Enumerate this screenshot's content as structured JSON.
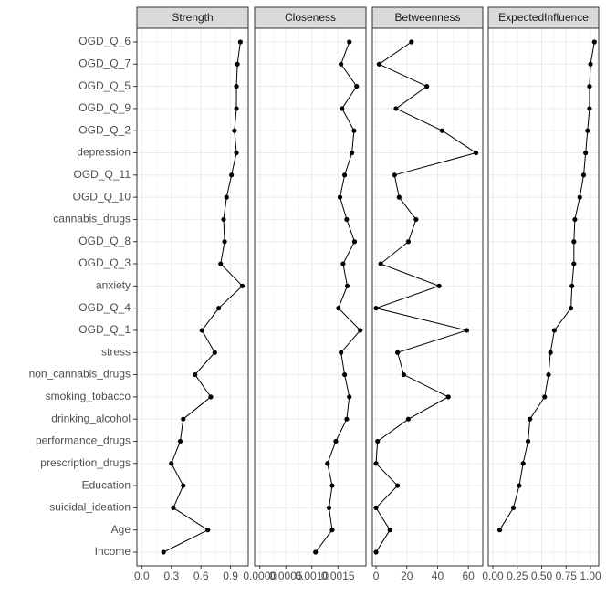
{
  "chart_data": {
    "type": "line",
    "orientation": "horizontal",
    "grid": true,
    "point_color": "#000000",
    "line_color": "#000000",
    "categories": [
      "OGD_Q_6",
      "OGD_Q_7",
      "OGD_Q_5",
      "OGD_Q_9",
      "OGD_Q_2",
      "depression",
      "OGD_Q_11",
      "OGD_Q_10",
      "cannabis_drugs",
      "OGD_Q_8",
      "OGD_Q_3",
      "anxiety",
      "OGD_Q_4",
      "OGD_Q_1",
      "stress",
      "non_cannabis_drugs",
      "smoking_tobacco",
      "drinking_alcohol",
      "performance_drugs",
      "prescription_drugs",
      "Education",
      "suicidal_ideation",
      "Age",
      "Income"
    ],
    "facets": [
      {
        "title": "Strength",
        "xlim": [
          -0.05,
          1.08
        ],
        "xticks": [
          {
            "value": 0,
            "label": "0.0"
          },
          0.3,
          0.6,
          0.9
        ],
        "values": [
          1.0,
          0.97,
          0.96,
          0.96,
          0.94,
          0.96,
          0.91,
          0.86,
          0.83,
          0.84,
          0.8,
          1.02,
          0.78,
          0.61,
          0.74,
          0.54,
          0.7,
          0.42,
          0.39,
          0.3,
          0.42,
          0.32,
          0.67,
          0.22
        ]
      },
      {
        "title": "Closeness",
        "xlim": [
          -0.0001,
          0.00204
        ],
        "xticks": [
          {
            "value": 0,
            "label": "0.0000"
          },
          {
            "value": 0.0005,
            "label": "0.0005"
          },
          {
            "value": 0.001,
            "label": "0.0010"
          },
          {
            "value": 0.0015,
            "label": "0.0015"
          }
        ],
        "values": [
          0.00172,
          0.00156,
          0.00186,
          0.00158,
          0.00181,
          0.00177,
          0.00163,
          0.00154,
          0.00167,
          0.00182,
          0.0016,
          0.00168,
          0.00151,
          0.00193,
          0.00156,
          0.00163,
          0.00172,
          0.00167,
          0.00146,
          0.0013,
          0.00139,
          0.00133,
          0.00139,
          0.00107
        ]
      },
      {
        "title": "Betweenness",
        "xlim": [
          -2.4,
          69.4
        ],
        "xticks": [
          0,
          20,
          40,
          60
        ],
        "values": [
          23,
          2,
          33,
          13,
          43,
          65,
          12,
          15,
          26,
          21,
          3,
          41,
          0,
          59,
          14,
          18,
          47,
          21,
          1,
          0,
          14,
          0,
          9,
          0
        ]
      },
      {
        "title": "ExpectedInfluence",
        "xlim": [
          -0.047,
          1.084
        ],
        "xticks": [
          {
            "value": 0,
            "label": "0.00"
          },
          0.25,
          {
            "value": 0.5,
            "label": "0.50"
          },
          0.75,
          {
            "value": 1,
            "label": "1.00"
          }
        ],
        "values": [
          1.04,
          1.0,
          0.99,
          0.99,
          0.97,
          0.95,
          0.93,
          0.89,
          0.84,
          0.83,
          0.83,
          0.81,
          0.8,
          0.63,
          0.59,
          0.57,
          0.53,
          0.38,
          0.36,
          0.31,
          0.27,
          0.21,
          0.07,
          null
        ]
      }
    ]
  }
}
